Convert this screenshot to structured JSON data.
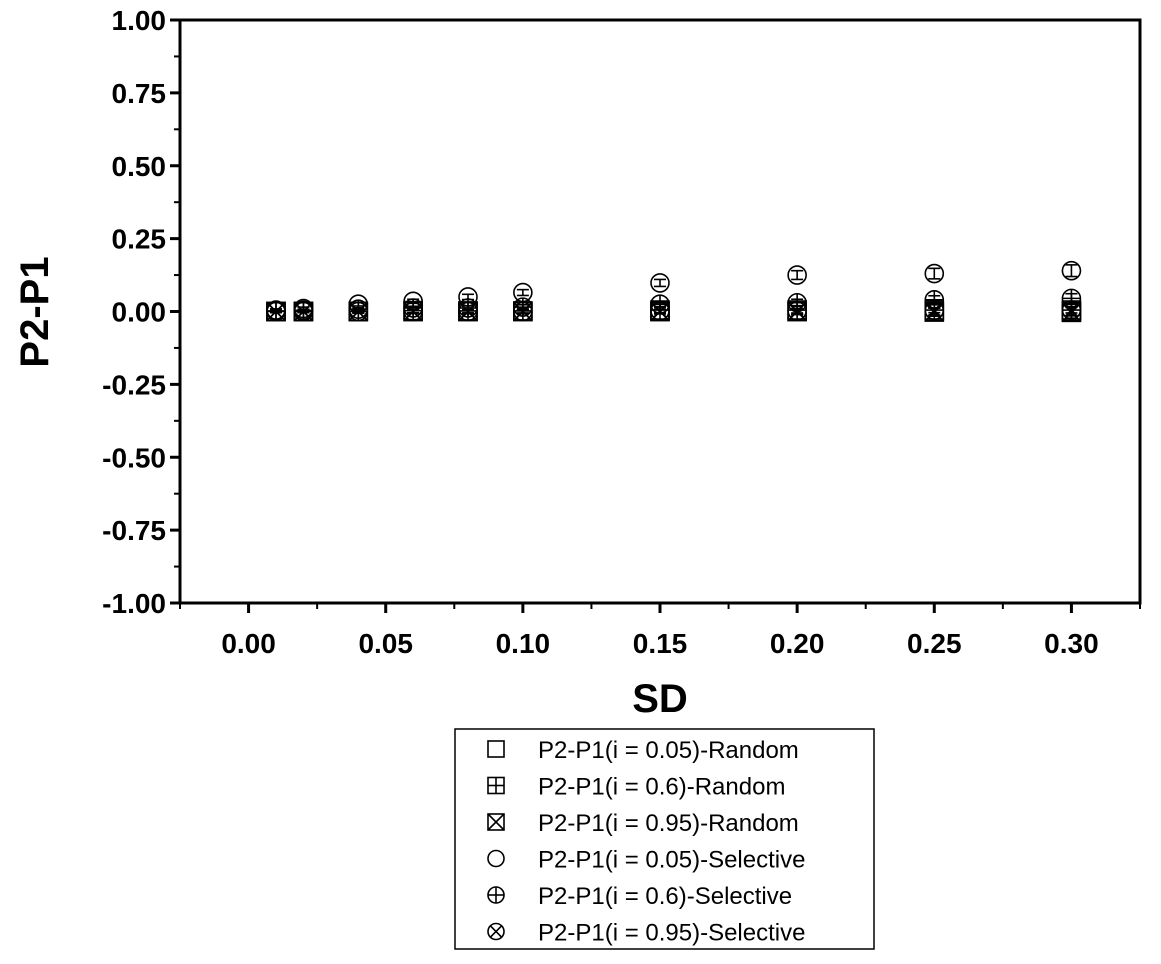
{
  "chart_data": {
    "type": "scatter",
    "title": "",
    "xlabel": "SD",
    "ylabel": "P2-P1",
    "xlim": [
      -0.025,
      0.325
    ],
    "ylim": [
      -1.0,
      1.0
    ],
    "x_ticks": [
      0.0,
      0.05,
      0.1,
      0.15,
      0.2,
      0.25,
      0.3
    ],
    "x_tick_labels": [
      "0.00",
      "0.05",
      "0.10",
      "0.15",
      "0.20",
      "0.25",
      "0.30"
    ],
    "y_ticks": [
      1.0,
      0.75,
      0.5,
      0.25,
      0.0,
      -0.25,
      -0.5,
      -0.75,
      -1.0
    ],
    "y_tick_labels": [
      "1.00",
      "0.75",
      "0.50",
      "0.25",
      "0.00",
      "-0.25",
      "-0.50",
      "-0.75",
      "-1.00"
    ],
    "grid": false,
    "legend_position": "bottom-center",
    "x": [
      0.01,
      0.02,
      0.04,
      0.06,
      0.08,
      0.1,
      0.15,
      0.2,
      0.25,
      0.3
    ],
    "series": [
      {
        "name": "P2-P1(i = 0.05)-Random",
        "marker": "square",
        "values": [
          0.0,
          0.0,
          0.0,
          0.0,
          0.0,
          0.0,
          0.0,
          0.0,
          0.0,
          0.0
        ],
        "error": [
          0.004,
          0.004,
          0.005,
          0.005,
          0.006,
          0.006,
          0.008,
          0.01,
          0.012,
          0.014
        ]
      },
      {
        "name": "P2-P1(i = 0.6)-Random",
        "marker": "square-plus",
        "values": [
          0.0,
          0.0,
          0.0,
          0.003,
          0.002,
          0.002,
          0.005,
          0.005,
          0.005,
          0.005
        ],
        "error": [
          0.004,
          0.004,
          0.006,
          0.01,
          0.01,
          0.01,
          0.012,
          0.015,
          0.018,
          0.02
        ]
      },
      {
        "name": "P2-P1(i = 0.95)-Random",
        "marker": "square-x",
        "values": [
          0.0,
          0.0,
          0.0,
          0.0,
          0.0,
          0.0,
          0.0,
          0.0,
          -0.002,
          -0.003
        ],
        "error": [
          0.003,
          0.003,
          0.004,
          0.005,
          0.005,
          0.006,
          0.008,
          0.01,
          0.014,
          0.02
        ]
      },
      {
        "name": "P2-P1(i = 0.05)-Selective",
        "marker": "circle",
        "values": [
          0.005,
          0.01,
          0.025,
          0.035,
          0.05,
          0.065,
          0.098,
          0.125,
          0.13,
          0.14
        ],
        "error": [
          0.004,
          0.005,
          0.006,
          0.007,
          0.009,
          0.01,
          0.012,
          0.015,
          0.018,
          0.02
        ]
      },
      {
        "name": "P2-P1(i = 0.6)-Selective",
        "marker": "circle-plus",
        "values": [
          0.002,
          0.004,
          0.008,
          0.012,
          0.012,
          0.015,
          0.025,
          0.03,
          0.04,
          0.045
        ],
        "error": [
          0.004,
          0.004,
          0.005,
          0.006,
          0.007,
          0.008,
          0.01,
          0.012,
          0.014,
          0.016
        ]
      },
      {
        "name": "P2-P1(i = 0.95)-Selective",
        "marker": "circle-x",
        "values": [
          0.0,
          0.0,
          0.0,
          0.0,
          0.0,
          0.0,
          0.002,
          0.002,
          0.004,
          0.005
        ],
        "error": [
          0.003,
          0.003,
          0.004,
          0.004,
          0.005,
          0.005,
          0.006,
          0.007,
          0.008,
          0.01
        ]
      }
    ]
  }
}
